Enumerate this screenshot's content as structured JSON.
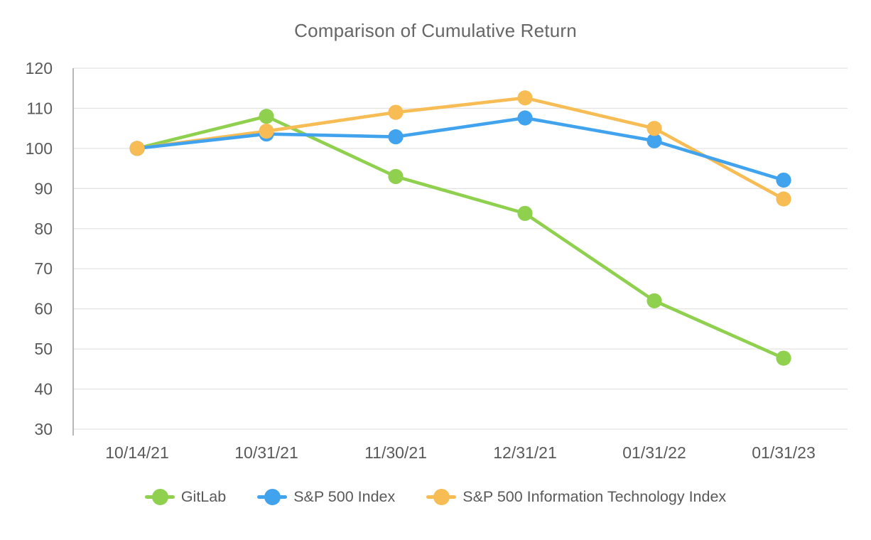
{
  "chart_data": {
    "type": "line",
    "title": "Comparison of Cumulative Return",
    "categories": [
      "10/14/21",
      "10/31/21",
      "11/30/21",
      "12/31/21",
      "01/31/22",
      "01/31/23"
    ],
    "series": [
      {
        "name": "GitLab",
        "color": "#90D04F",
        "values": [
          100,
          108.0,
          93.0,
          83.8,
          62.0,
          47.7
        ]
      },
      {
        "name": "S&P 500 Index",
        "color": "#41A3ED",
        "values": [
          100,
          103.6,
          102.9,
          107.6,
          101.9,
          92.1
        ]
      },
      {
        "name": "S&P 500 Information Technology Index",
        "color": "#F8BC55",
        "values": [
          100,
          104.3,
          109.0,
          112.6,
          105.0,
          87.4
        ]
      }
    ],
    "ylim": [
      30,
      120
    ],
    "ytick_step": 10,
    "yticks": [
      30,
      40,
      50,
      60,
      70,
      80,
      90,
      100,
      110,
      120
    ],
    "grid": "horizontal",
    "legend_position": "bottom",
    "colors": {
      "title": "#666666",
      "tick_label": "#595959",
      "axis_line": "#A6A6A6",
      "grid_line": "#E4E4E4",
      "background": "#FFFFFF"
    }
  }
}
